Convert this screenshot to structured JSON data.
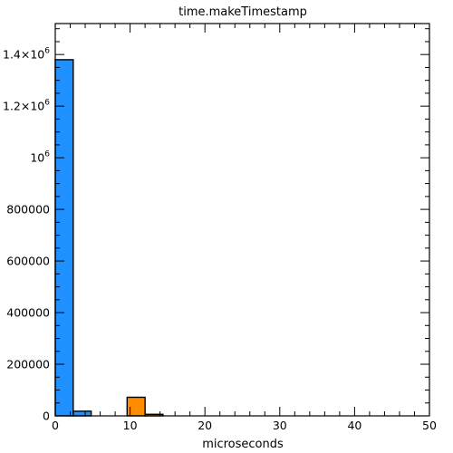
{
  "chart_data": {
    "type": "bar",
    "title": "time.makeTimestamp",
    "xlabel": "microseconds",
    "ylabel": "",
    "xlim": [
      0,
      50
    ],
    "ylim": [
      0,
      1520000
    ],
    "grid": false,
    "bin_width": 2.4,
    "x_ticks": [
      0,
      10,
      20,
      30,
      40,
      50
    ],
    "x_tick_labels": [
      "0",
      "10",
      "20",
      "30",
      "40",
      "50"
    ],
    "y_ticks": [
      0,
      200000,
      400000,
      600000,
      800000,
      1000000,
      1200000,
      1400000
    ],
    "y_tick_labels": [
      {
        "base": "0",
        "exp": ""
      },
      {
        "base": "200000",
        "exp": ""
      },
      {
        "base": "400000",
        "exp": ""
      },
      {
        "base": "600000",
        "exp": ""
      },
      {
        "base": "800000",
        "exp": ""
      },
      {
        "base": "10",
        "exp": "6"
      },
      {
        "base": "1.2×10",
        "exp": "6"
      },
      {
        "base": "1.4×10",
        "exp": "6"
      }
    ],
    "series": [
      {
        "color": "#1e90ff",
        "bins": [
          {
            "x0": 0.0,
            "x1": 2.4,
            "value": 1380000
          },
          {
            "x0": 2.4,
            "x1": 4.8,
            "value": 18000
          }
        ]
      },
      {
        "color": "#ff8c00",
        "bins": [
          {
            "x0": 9.6,
            "x1": 12.0,
            "value": 72000
          },
          {
            "x0": 12.0,
            "x1": 14.4,
            "value": 6000
          }
        ]
      }
    ]
  }
}
